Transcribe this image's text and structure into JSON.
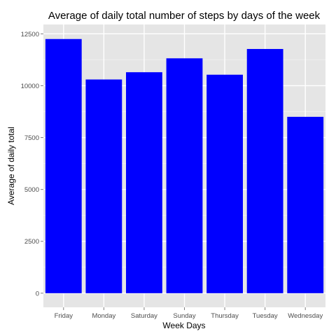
{
  "chart_data": {
    "type": "bar",
    "title": "Average of daily total number of steps by days of the week",
    "xlabel": "Week Days",
    "ylabel": "Average of daily total",
    "categories": [
      "Friday",
      "Monday",
      "Saturday",
      "Sunday",
      "Thursday",
      "Tuesday",
      "Wednesday"
    ],
    "values": [
      12250,
      10300,
      10650,
      11320,
      10530,
      11770,
      8500
    ],
    "ylim": [
      -680,
      12950
    ],
    "yticks": [
      0,
      2500,
      5000,
      7500,
      10000,
      12500
    ],
    "ytick_labels": [
      "0",
      "2500",
      "5000",
      "7500",
      "10000",
      "12500"
    ],
    "grid": true,
    "legend": "none",
    "colors": {
      "bar": "#0000ff",
      "panel": "#e5e5e5",
      "grid_major": "#ffffff",
      "grid_minor": "#f2f2f2",
      "tick_text": "#4d4d4d",
      "tick_mark": "#7f7f7f"
    }
  }
}
